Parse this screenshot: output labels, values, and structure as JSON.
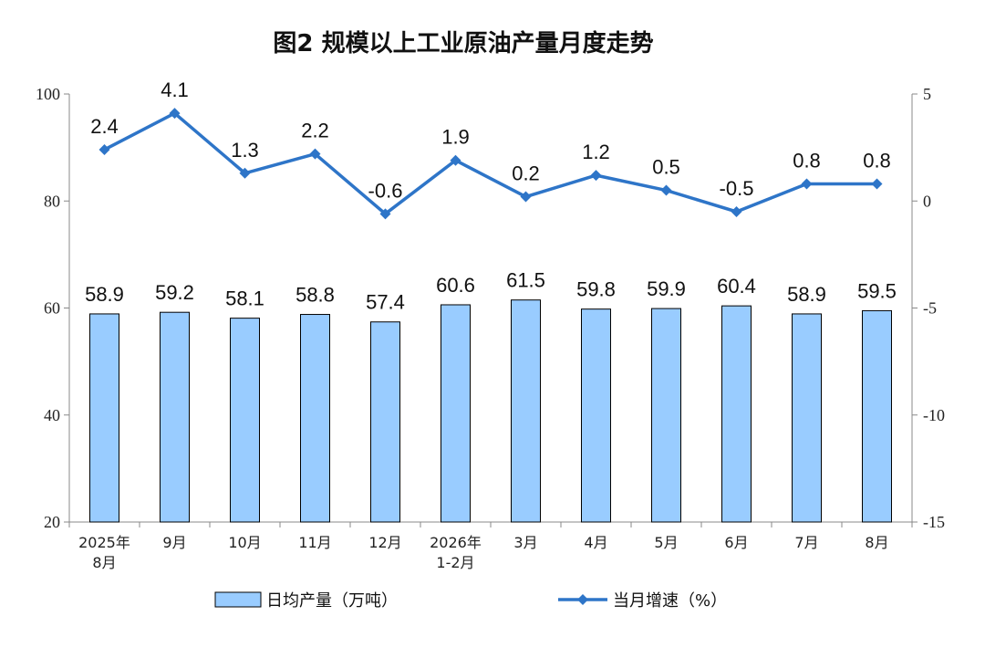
{
  "chart_data": {
    "type": "bar+line",
    "title": "图2  规模以上工业原油产量月度走势",
    "categories": [
      [
        "2025年",
        "8月"
      ],
      [
        "9月"
      ],
      [
        "10月"
      ],
      [
        "11月"
      ],
      [
        "12月"
      ],
      [
        "2026年",
        "1-2月"
      ],
      [
        "3月"
      ],
      [
        "4月"
      ],
      [
        "5月"
      ],
      [
        "6月"
      ],
      [
        "7月"
      ],
      [
        "8月"
      ]
    ],
    "series": [
      {
        "name": "日均产量（万吨）",
        "type": "bar",
        "axis": "left",
        "color": "#99CCFF",
        "values": [
          58.9,
          59.2,
          58.1,
          58.8,
          57.4,
          60.6,
          61.5,
          59.8,
          59.9,
          60.4,
          58.9,
          59.5
        ]
      },
      {
        "name": "当月增速（%）",
        "type": "line",
        "axis": "right",
        "color": "#2E75C8",
        "marker": "diamond",
        "values": [
          2.4,
          4.1,
          1.3,
          2.2,
          -0.6,
          1.9,
          0.2,
          1.2,
          0.5,
          -0.5,
          0.8,
          0.8
        ]
      }
    ],
    "left_axis": {
      "min": 20,
      "max": 100,
      "ticks": [
        "20",
        "40",
        "60",
        "80",
        "100"
      ]
    },
    "right_axis": {
      "min": -15,
      "max": 5,
      "ticks": [
        "-15",
        "-10",
        "-5",
        "0",
        "5"
      ]
    },
    "grid": false,
    "legend_position": "bottom"
  }
}
